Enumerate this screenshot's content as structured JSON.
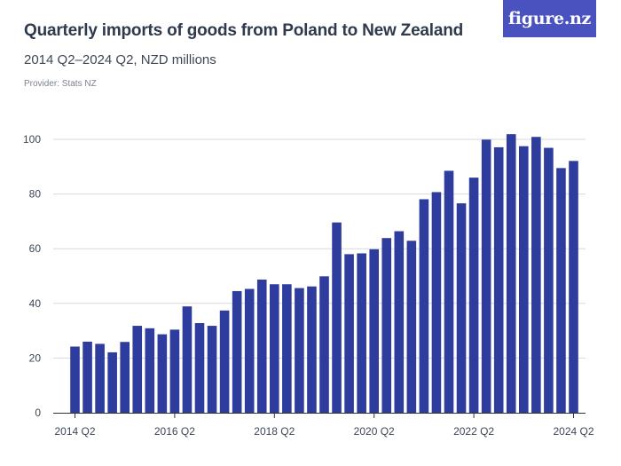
{
  "header": {
    "title": "Quarterly imports of goods from Poland to New Zealand",
    "subtitle": "2014 Q2–2024 Q2, NZD millions",
    "provider": "Provider: Stats NZ"
  },
  "logo": {
    "text": "figure.nz"
  },
  "colors": {
    "bar": "#2e3c9e",
    "grid": "#d9d9d9",
    "axis": "#333333",
    "logo_bg": "#4a52c0"
  },
  "chart_data": {
    "type": "bar",
    "title": "Quarterly imports of goods from Poland to New Zealand",
    "subtitle": "2014 Q2–2024 Q2, NZD millions",
    "xlabel": "",
    "ylabel": "",
    "ylim": [
      0,
      105
    ],
    "yticks": [
      0,
      20,
      40,
      60,
      80,
      100
    ],
    "grid": true,
    "xtick_labels": [
      {
        "index": 0,
        "label": "2014 Q2"
      },
      {
        "index": 8,
        "label": "2016 Q2"
      },
      {
        "index": 16,
        "label": "2018 Q2"
      },
      {
        "index": 24,
        "label": "2020 Q2"
      },
      {
        "index": 32,
        "label": "2022 Q2"
      },
      {
        "index": 40,
        "label": "2024 Q2"
      }
    ],
    "categories": [
      "2014 Q2",
      "2014 Q3",
      "2014 Q4",
      "2015 Q1",
      "2015 Q2",
      "2015 Q3",
      "2015 Q4",
      "2016 Q1",
      "2016 Q2",
      "2016 Q3",
      "2016 Q4",
      "2017 Q1",
      "2017 Q2",
      "2017 Q3",
      "2017 Q4",
      "2018 Q1",
      "2018 Q2",
      "2018 Q3",
      "2018 Q4",
      "2019 Q1",
      "2019 Q2",
      "2019 Q3",
      "2019 Q4",
      "2020 Q1",
      "2020 Q2",
      "2020 Q3",
      "2020 Q4",
      "2021 Q1",
      "2021 Q2",
      "2021 Q3",
      "2021 Q4",
      "2022 Q1",
      "2022 Q2",
      "2022 Q3",
      "2022 Q4",
      "2023 Q1",
      "2023 Q2",
      "2023 Q3",
      "2023 Q4",
      "2024 Q1",
      "2024 Q2"
    ],
    "values": [
      24.2,
      26.0,
      25.2,
      22.1,
      25.9,
      31.8,
      30.9,
      28.7,
      30.4,
      38.9,
      32.8,
      31.8,
      37.4,
      44.5,
      45.3,
      48.7,
      47.0,
      47.0,
      45.6,
      46.2,
      49.9,
      69.6,
      58.0,
      58.3,
      59.8,
      63.9,
      66.4,
      62.9,
      78.1,
      80.7,
      88.5,
      76.6,
      86.0,
      99.9,
      97.1,
      101.9,
      97.5,
      100.9,
      96.9,
      89.5,
      92.1
    ]
  }
}
